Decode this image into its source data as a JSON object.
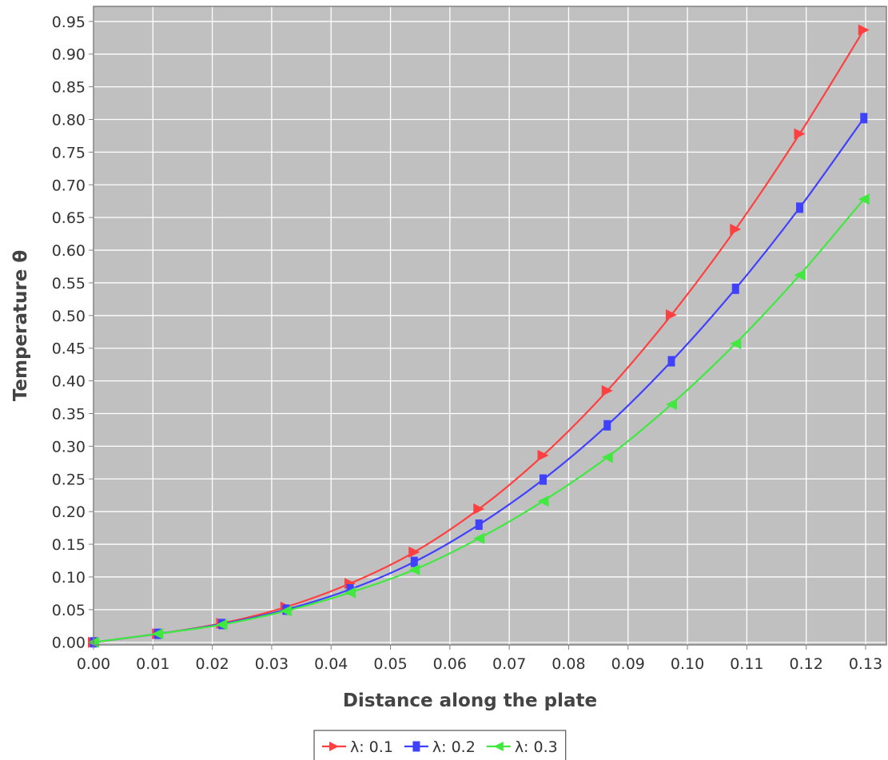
{
  "chart_data": {
    "type": "line",
    "title": "",
    "xlabel": "Distance along the plate",
    "ylabel": "Temperature θ",
    "xlim": [
      0,
      0.1335
    ],
    "ylim": [
      -0.004,
      0.973
    ],
    "grid": true,
    "legend_position": "bottom-center",
    "plot_background": "#c0c0c0",
    "x_ticks": [
      "0.00",
      "0.01",
      "0.02",
      "0.03",
      "0.04",
      "0.05",
      "0.06",
      "0.07",
      "0.08",
      "0.09",
      "0.10",
      "0.11",
      "0.12",
      "0.13"
    ],
    "y_ticks": [
      "0.00",
      "0.05",
      "0.10",
      "0.15",
      "0.20",
      "0.25",
      "0.30",
      "0.35",
      "0.40",
      "0.45",
      "0.50",
      "0.55",
      "0.60",
      "0.65",
      "0.70",
      "0.75",
      "0.80",
      "0.85",
      "0.90",
      "0.95"
    ],
    "x": [
      0.0,
      0.0108,
      0.0216,
      0.0324,
      0.0432,
      0.054,
      0.0649,
      0.0757,
      0.0865,
      0.0973,
      0.1081,
      0.1189,
      0.1297
    ],
    "series": [
      {
        "name": "λ: 0.1",
        "color": "#ff4040",
        "marker": "triangle-right",
        "values": [
          0.0,
          0.013,
          0.029,
          0.054,
          0.09,
          0.138,
          0.204,
          0.286,
          0.385,
          0.501,
          0.632,
          0.778,
          0.937
        ]
      },
      {
        "name": "λ: 0.2",
        "color": "#4040ff",
        "marker": "square",
        "values": [
          0.0,
          0.013,
          0.028,
          0.05,
          0.081,
          0.123,
          0.18,
          0.249,
          0.332,
          0.43,
          0.541,
          0.665,
          0.802
        ]
      },
      {
        "name": "λ: 0.3",
        "color": "#40e840",
        "marker": "triangle-left",
        "values": [
          0.0,
          0.013,
          0.027,
          0.048,
          0.076,
          0.111,
          0.159,
          0.216,
          0.283,
          0.364,
          0.457,
          0.562,
          0.678
        ]
      }
    ]
  }
}
